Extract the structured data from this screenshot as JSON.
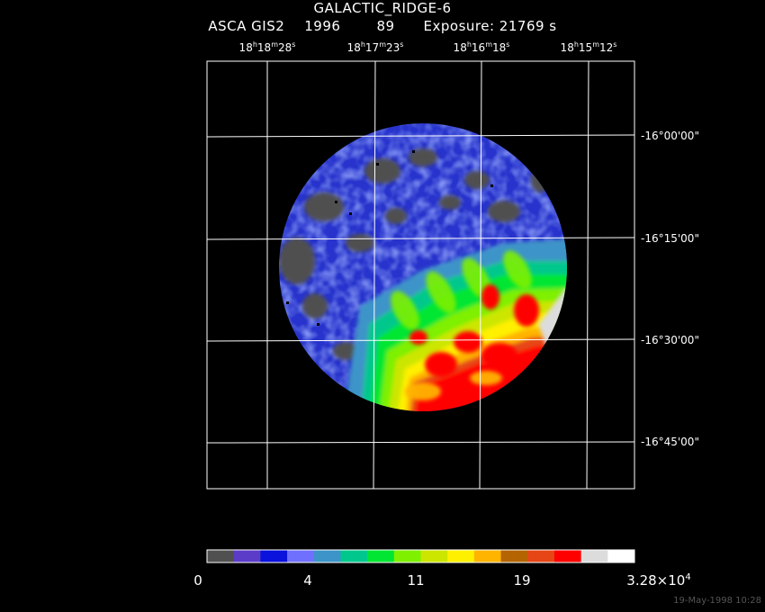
{
  "header": {
    "title": "GALACTIC_RIDGE-6",
    "instrument": "ASCA GIS2",
    "year": "1996",
    "sequence": "89",
    "exposure": "Exposure: 21769 s"
  },
  "axes": {
    "ra_ticks": [
      {
        "h": "18",
        "m": "18",
        "s": "28"
      },
      {
        "h": "18",
        "m": "17",
        "s": "23"
      },
      {
        "h": "18",
        "m": "16",
        "s": "18"
      },
      {
        "h": "18",
        "m": "15",
        "s": "12"
      }
    ],
    "dec_ticks": [
      "-16°00'00\"",
      "-16°15'00\"",
      "-16°30'00\"",
      "-16°45'00\""
    ]
  },
  "colorbar": {
    "colors": [
      "#505050",
      "#5a3cc8",
      "#0a12dc",
      "#7070ff",
      "#3c94c8",
      "#00c88c",
      "#00e632",
      "#7ef000",
      "#cce600",
      "#fff000",
      "#ffb400",
      "#b46400",
      "#e64616",
      "#ff0000",
      "#dcdcdc",
      "#ffffff"
    ],
    "tick_labels": [
      "0",
      "4",
      "11",
      "19"
    ],
    "max_label_mantissa": "3.28×10",
    "max_label_exponent": "4"
  },
  "footer": {
    "timestamp": "19-May-1998 10:28"
  }
}
